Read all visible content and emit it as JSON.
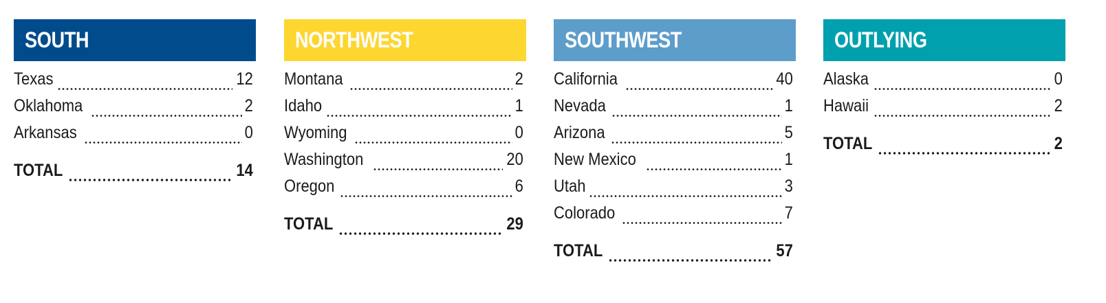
{
  "regions": [
    {
      "title": "SOUTH",
      "color": "#004b8c",
      "rows": [
        {
          "label": "Texas",
          "value": 12
        },
        {
          "label": "Oklahoma",
          "value": 2
        },
        {
          "label": "Arkansas",
          "value": 0
        }
      ],
      "total": {
        "label": "TOTAL",
        "value": 14
      }
    },
    {
      "title": "NORTHWEST",
      "color": "#fdd630",
      "rows": [
        {
          "label": "Montana",
          "value": 2
        },
        {
          "label": "Idaho",
          "value": 1
        },
        {
          "label": "Wyoming",
          "value": 0
        },
        {
          "label": "Washington",
          "value": 20
        },
        {
          "label": "Oregon",
          "value": 6
        }
      ],
      "total": {
        "label": "TOTAL",
        "value": 29
      }
    },
    {
      "title": "SOUTHWEST",
      "color": "#5d9dca",
      "rows": [
        {
          "label": "California",
          "value": 40
        },
        {
          "label": "Nevada",
          "value": 1
        },
        {
          "label": "Arizona",
          "value": 5
        },
        {
          "label": "New Mexico",
          "value": 1
        },
        {
          "label": "Utah",
          "value": 3
        },
        {
          "label": "Colorado",
          "value": 7
        }
      ],
      "total": {
        "label": "TOTAL",
        "value": 57
      }
    },
    {
      "title": "OUTLYING",
      "color": "#00a0ae",
      "rows": [
        {
          "label": "Alaska",
          "value": 0
        },
        {
          "label": "Hawaii",
          "value": 2
        }
      ],
      "total": {
        "label": "TOTAL",
        "value": 2
      }
    }
  ]
}
